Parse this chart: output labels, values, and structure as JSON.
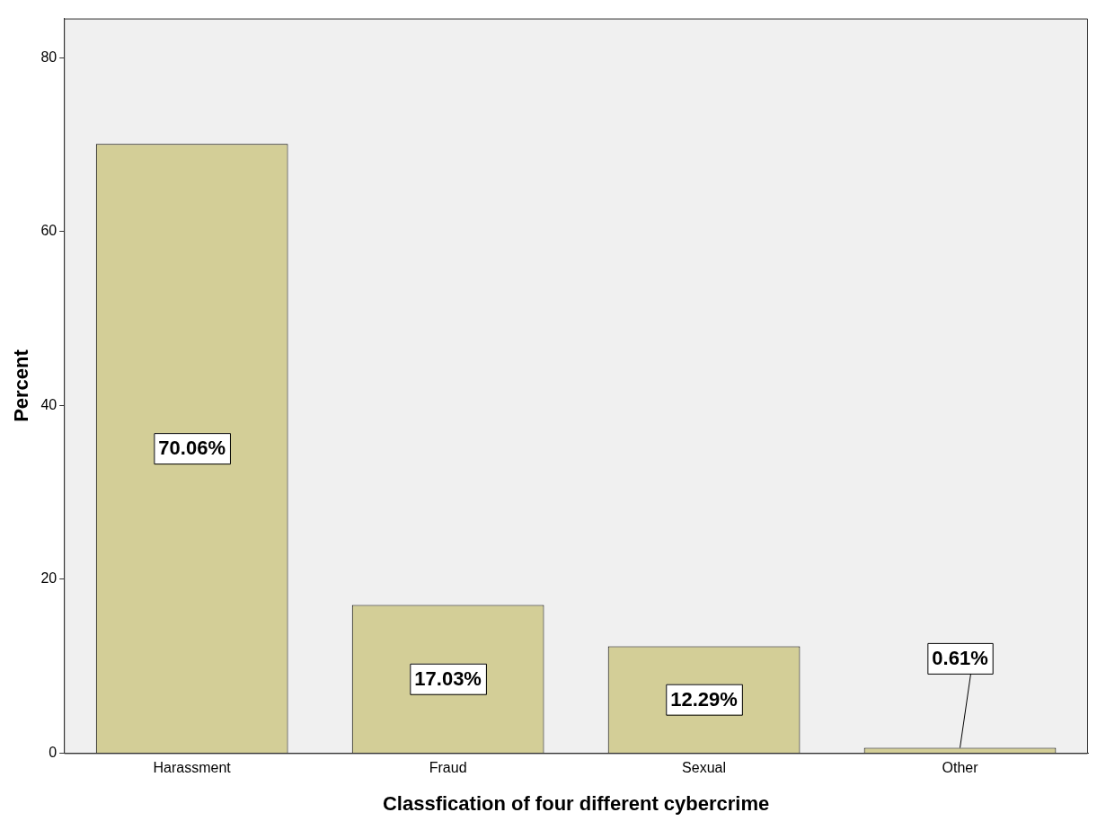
{
  "chart_data": {
    "type": "bar",
    "xlabel": "Classfication of four different cybercrime",
    "ylabel": "Percent",
    "categories": [
      "Harassment",
      "Fraud",
      "Sexual",
      "Other"
    ],
    "values": [
      70.06,
      17.03,
      12.29,
      0.61
    ],
    "value_labels": [
      "70.06%",
      "17.03%",
      "12.29%",
      "0.61%"
    ],
    "color": "#d3ce97",
    "ylim": [
      0,
      84.5
    ],
    "yticks": [
      0,
      20,
      40,
      60,
      80
    ],
    "grid": false,
    "legend": false
  }
}
